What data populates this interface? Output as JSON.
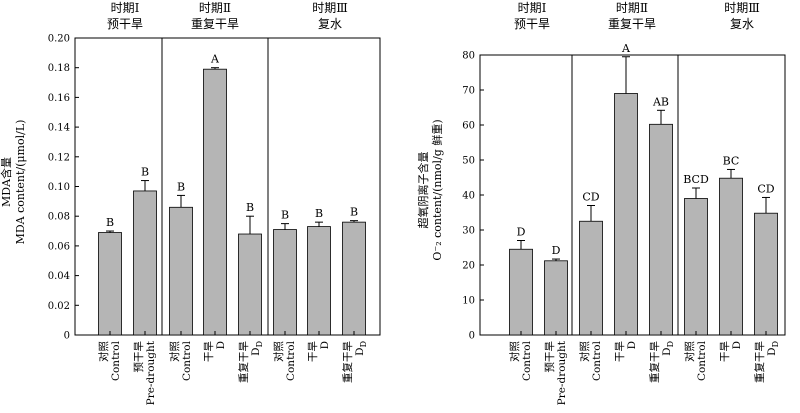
{
  "chart_data": [
    {
      "type": "bar",
      "ylabel_line1": "MDA含量",
      "ylabel_line2": "MDA content/(μmol/L)",
      "ylim": [
        0,
        0.2
      ],
      "yticks": [
        "0",
        "0.02",
        "0.04",
        "0.06",
        "0.08",
        "0.10",
        "0.12",
        "0.14",
        "0.16",
        "0.18",
        "0.20"
      ],
      "groups": [
        {
          "title": "时期Ⅰ",
          "subtitle": "预干旱"
        },
        {
          "title": "时期Ⅱ",
          "subtitle": "重复干旱"
        },
        {
          "title": "时期Ⅲ",
          "subtitle": "复水"
        }
      ],
      "bars": [
        {
          "cn": "对照",
          "en": "Control",
          "group": 0,
          "value": 0.069,
          "err": 0.001,
          "letter": "B"
        },
        {
          "cn": "预干旱",
          "en": "Pre-drought",
          "group": 0,
          "value": 0.097,
          "err": 0.007,
          "letter": "B"
        },
        {
          "cn": "对照",
          "en": "Control",
          "group": 1,
          "value": 0.086,
          "err": 0.008,
          "letter": "B"
        },
        {
          "cn": "干旱",
          "en": "D",
          "group": 1,
          "value": 0.179,
          "err": 0.001,
          "letter": "A"
        },
        {
          "cn": "重复干旱",
          "en": "D",
          "en_sub": "D",
          "group": 1,
          "value": 0.068,
          "err": 0.012,
          "letter": "B"
        },
        {
          "cn": "对照",
          "en": "Control",
          "group": 2,
          "value": 0.071,
          "err": 0.004,
          "letter": "B"
        },
        {
          "cn": "干旱",
          "en": "D",
          "group": 2,
          "value": 0.073,
          "err": 0.003,
          "letter": "B"
        },
        {
          "cn": "重复干旱",
          "en": "D",
          "en_sub": "D",
          "group": 2,
          "value": 0.076,
          "err": 0.001,
          "letter": "B"
        }
      ]
    },
    {
      "type": "bar",
      "ylabel_line1": "超氧阴离子含量",
      "ylabel_line2": "O⁻₂ content/(nmol/g 鲜重)",
      "ylim": [
        0,
        80
      ],
      "yticks": [
        "0",
        "10",
        "20",
        "30",
        "40",
        "50",
        "60",
        "70",
        "80"
      ],
      "groups": [
        {
          "title": "时期Ⅰ",
          "subtitle": "预干旱"
        },
        {
          "title": "时期Ⅱ",
          "subtitle": "重复干旱"
        },
        {
          "title": "时期Ⅲ",
          "subtitle": "复水"
        }
      ],
      "bars": [
        {
          "cn": "对照",
          "en": "Control",
          "group": 0,
          "value": 24.5,
          "err": 2.5,
          "letter": "D"
        },
        {
          "cn": "预干旱",
          "en": "Pre-drought",
          "group": 0,
          "value": 21.2,
          "err": 0.5,
          "letter": "D"
        },
        {
          "cn": "对照",
          "en": "Control",
          "group": 1,
          "value": 32.5,
          "err": 4.5,
          "letter": "CD"
        },
        {
          "cn": "干旱",
          "en": "D",
          "group": 1,
          "value": 69.0,
          "err": 10.5,
          "letter": "A"
        },
        {
          "cn": "重复干旱",
          "en": "D",
          "en_sub": "D",
          "group": 1,
          "value": 60.2,
          "err": 4.0,
          "letter": "AB"
        },
        {
          "cn": "对照",
          "en": "Control",
          "group": 2,
          "value": 39.0,
          "err": 3.0,
          "letter": "BCD"
        },
        {
          "cn": "干旱",
          "en": "D",
          "group": 2,
          "value": 44.8,
          "err": 2.5,
          "letter": "BC"
        },
        {
          "cn": "重复干旱",
          "en": "D",
          "en_sub": "D",
          "group": 2,
          "value": 34.8,
          "err": 4.5,
          "letter": "CD"
        }
      ]
    }
  ]
}
